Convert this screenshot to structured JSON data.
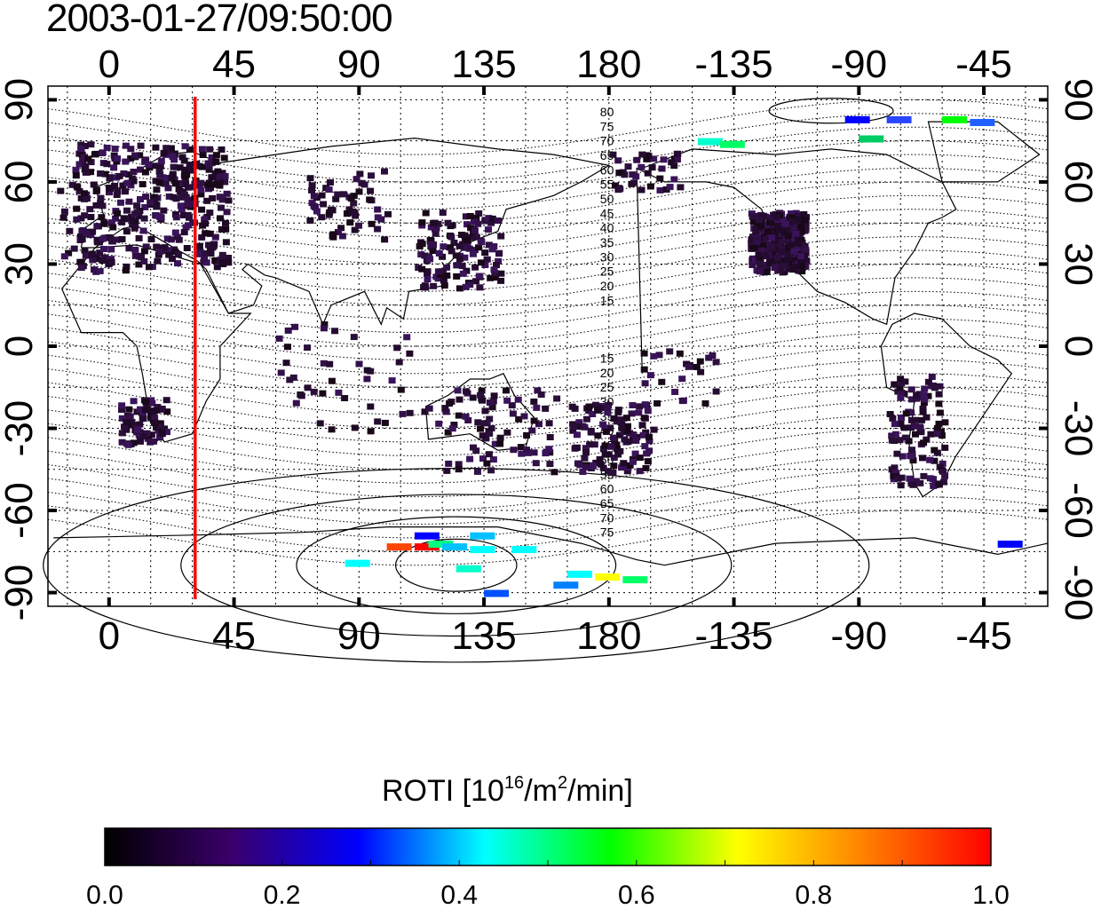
{
  "timestamp": "2003-01-27/09:50:00",
  "map": {
    "lon_ticks": [
      "0",
      "45",
      "90",
      "135",
      "180",
      "-135",
      "-90",
      "-45"
    ],
    "lon_tick_values": [
      0,
      45,
      90,
      135,
      180,
      225,
      270,
      315
    ],
    "lat_ticks": [
      "90",
      "60",
      "30",
      "0",
      "-30",
      "-60",
      "-90"
    ],
    "lat_tick_values": [
      90,
      60,
      30,
      0,
      -30,
      -60,
      -90
    ],
    "lon_range": [
      -22,
      338
    ],
    "lat_range": [
      -95,
      95
    ],
    "grid": true,
    "highlight_longitude": 31,
    "highlight_color": "#ff0000",
    "contour_labels_north": [
      "80",
      "75",
      "70",
      "65",
      "60",
      "55",
      "50",
      "45",
      "40",
      "35",
      "30",
      "25",
      "20",
      "15"
    ],
    "contour_labels_south": [
      "15",
      "20",
      "25",
      "30",
      "35",
      "40",
      "45",
      "50",
      "55",
      "60",
      "65",
      "70",
      "75"
    ]
  },
  "colorbar": {
    "title": "ROTI  [10",
    "title_sup1": "16",
    "title_mid": "/m",
    "title_sup2": "2",
    "title_end": "/min]",
    "ticks": [
      "0.0",
      "0.2",
      "0.4",
      "0.6",
      "0.8",
      "1.0"
    ],
    "range": [
      0.0,
      1.0
    ],
    "colors": [
      "#000000",
      "#3a006b",
      "#0000ff",
      "#00ffff",
      "#00ff00",
      "#ffff00",
      "#ff8000",
      "#ff0000"
    ]
  }
}
